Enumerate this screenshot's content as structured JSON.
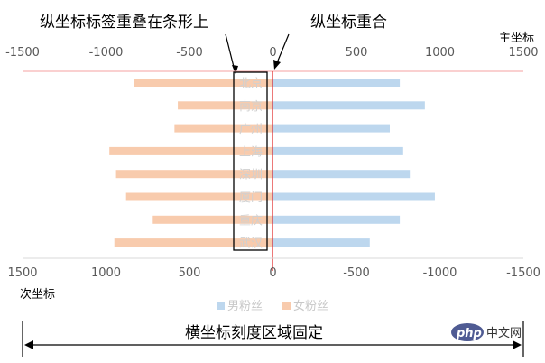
{
  "chart_data": {
    "type": "bar",
    "orientation": "horizontal",
    "categories": [
      "北京",
      "南京",
      "广州",
      "上海",
      "深圳",
      "厦门",
      "重庆",
      "武汉"
    ],
    "series": [
      {
        "name": "男粉丝",
        "color": "#bdd7ee",
        "values": [
          760,
          910,
          700,
          780,
          820,
          970,
          760,
          580
        ]
      },
      {
        "name": "女粉丝",
        "color": "#f8cbad",
        "values": [
          830,
          570,
          590,
          980,
          940,
          880,
          720,
          950
        ]
      }
    ],
    "primary_axis": {
      "label": "主坐标",
      "ticks": [
        "-1500",
        "-1000",
        "-500",
        "0",
        "500",
        "1000",
        "1500"
      ],
      "range": [
        -1500,
        1500
      ]
    },
    "secondary_axis": {
      "label": "次坐标",
      "ticks": [
        "1500",
        "1000",
        "500",
        "0",
        "-500",
        "-1000",
        "-1500"
      ],
      "range": [
        1500,
        -1500
      ]
    },
    "legend_position": "bottom",
    "annotations": {
      "label_overlap": "纵坐标标签重叠在条形上",
      "axis_overlap": "纵坐标重合",
      "fixed_region": "横坐标刻度区域固定"
    }
  },
  "watermark": {
    "brand": "php",
    "site": "中文网"
  }
}
